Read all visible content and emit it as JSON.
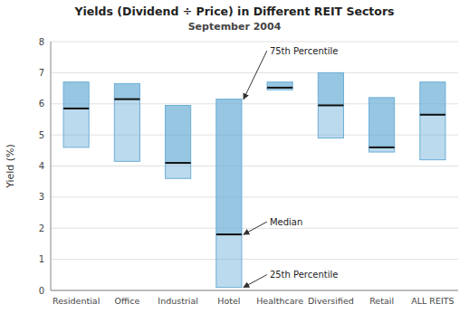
{
  "chart_data": {
    "type": "box",
    "title": "Yields (Dividend ÷ Price) in Different REIT Sectors",
    "subtitle": "September 2004",
    "ylabel": "Yield (%)",
    "categories": [
      "Residential",
      "Office",
      "Industrial",
      "Hotel",
      "Healthcare",
      "Diversified",
      "Retail",
      "ALL REITS"
    ],
    "p25": [
      4.6,
      4.15,
      3.6,
      0.1,
      6.45,
      4.9,
      4.45,
      4.2
    ],
    "median": [
      5.85,
      6.15,
      4.1,
      1.8,
      6.52,
      5.95,
      4.6,
      5.65
    ],
    "p75": [
      6.7,
      6.65,
      5.95,
      6.15,
      6.7,
      7.0,
      6.2,
      6.7
    ],
    "ylim": [
      0,
      8
    ],
    "yticks": [
      0,
      1,
      2,
      3,
      4,
      5,
      6,
      7,
      8
    ],
    "grid": true,
    "color": "#6baed6",
    "annotations": [
      {
        "text": "75th Percentile",
        "x": "Hotel",
        "y": 6.15
      },
      {
        "text": "Median",
        "x": "Hotel",
        "y": 1.8
      },
      {
        "text": "25th Percentile",
        "x": "Hotel",
        "y": 0.1
      }
    ]
  }
}
